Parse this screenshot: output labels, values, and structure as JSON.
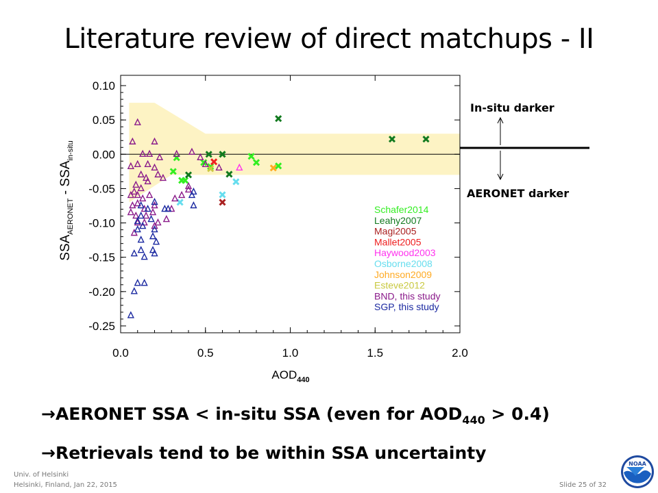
{
  "slide": {
    "title": "Literature review of direct matchups - II",
    "bullet1": {
      "arrow": "→",
      "prefix": "AERONET SSA < in-situ SSA (even for AOD",
      "sub": "440",
      "suffix": " > 0.4)"
    },
    "bullet2": {
      "arrow": "→",
      "text": "Retrievals tend to be within SSA uncertainty"
    },
    "footer_left_1": "Univ. of Helsinki",
    "footer_left_2": "Helsinki, Finland, Jan 22, 2015",
    "footer_right": "Slide 25 of 32",
    "logo": "noaa-logo",
    "colors": {
      "band": "#fdf3c4"
    }
  },
  "annotations": {
    "insitu_darker": "In-situ darker",
    "aeronet_darker": "AERONET darker"
  },
  "chart_data": {
    "type": "scatter",
    "xlabel_main": "AOD",
    "xlabel_sub": "440",
    "ylabel_main": "SSA",
    "ylabel_sub1": "AERONET",
    "ylabel_mid": " - SSA",
    "ylabel_sub2": "in-situ",
    "xlim": [
      0.0,
      2.0
    ],
    "ylim": [
      -0.26,
      0.115
    ],
    "xticks": [
      "0.0",
      "0.5",
      "1.0",
      "1.5",
      "2.0"
    ],
    "yticks": [
      "0.10",
      "0.05",
      "0.00",
      "-0.05",
      "-0.10",
      "-0.15",
      "-0.20",
      "-0.25"
    ],
    "legend_position": "bottom-right",
    "uncertainty_band": [
      [
        0.05,
        0.075
      ],
      [
        0.2,
        0.075
      ],
      [
        0.5,
        0.03
      ],
      [
        2.0,
        0.03
      ],
      [
        2.0,
        -0.03
      ],
      [
        0.3,
        -0.03
      ],
      [
        0.05,
        -0.07
      ]
    ],
    "series": [
      {
        "name": "Schafer2014",
        "color": "#33ee22",
        "marker": "x",
        "points": [
          [
            0.33,
            -0.005
          ],
          [
            0.31,
            -0.025
          ],
          [
            0.36,
            -0.038
          ],
          [
            0.38,
            -0.038
          ],
          [
            0.49,
            -0.012
          ],
          [
            0.53,
            -0.018
          ],
          [
            0.6,
            0.0
          ],
          [
            0.77,
            -0.003
          ],
          [
            0.8,
            -0.012
          ],
          [
            0.93,
            -0.017
          ]
        ]
      },
      {
        "name": "Leahy2007",
        "color": "#127a1f",
        "marker": "x",
        "points": [
          [
            0.4,
            -0.03
          ],
          [
            0.52,
            0.0
          ],
          [
            0.6,
            0.0
          ],
          [
            0.64,
            -0.029
          ],
          [
            0.93,
            0.052
          ],
          [
            1.6,
            0.022
          ],
          [
            1.8,
            0.022
          ]
        ]
      },
      {
        "name": "Magi2005",
        "color": "#aa2222",
        "marker": "x",
        "points": [
          [
            0.6,
            -0.07
          ]
        ]
      },
      {
        "name": "Mallet2005",
        "color": "#ee2020",
        "marker": "x",
        "points": [
          [
            0.55,
            -0.011
          ]
        ]
      },
      {
        "name": "Haywood2003",
        "color": "#ff33ee",
        "marker": "triangle",
        "points": [
          [
            0.7,
            -0.02
          ]
        ]
      },
      {
        "name": "Osborne2008",
        "color": "#66ddee",
        "marker": "x",
        "points": [
          [
            0.35,
            -0.07
          ],
          [
            0.6,
            -0.059
          ],
          [
            0.68,
            -0.04
          ]
        ]
      },
      {
        "name": "Johnson2009",
        "color": "#ffaa22",
        "marker": "x",
        "points": [
          [
            0.9,
            -0.02
          ]
        ]
      },
      {
        "name": "Esteve2012",
        "color": "#c9c940",
        "marker": "x",
        "points": [
          [
            0.53,
            -0.021
          ]
        ]
      },
      {
        "name": "BND, this study",
        "color": "#8a1a8a",
        "marker": "triangle",
        "points": [
          [
            0.1,
            0.046
          ],
          [
            0.07,
            0.018
          ],
          [
            0.2,
            0.018
          ],
          [
            0.13,
            0.0
          ],
          [
            0.17,
            0.0
          ],
          [
            0.23,
            -0.005
          ],
          [
            0.06,
            -0.018
          ],
          [
            0.1,
            -0.015
          ],
          [
            0.16,
            -0.015
          ],
          [
            0.2,
            -0.02
          ],
          [
            0.12,
            -0.03
          ],
          [
            0.15,
            -0.035
          ],
          [
            0.22,
            -0.03
          ],
          [
            0.09,
            -0.045
          ],
          [
            0.12,
            -0.05
          ],
          [
            0.16,
            -0.04
          ],
          [
            0.25,
            -0.035
          ],
          [
            0.06,
            -0.06
          ],
          [
            0.08,
            -0.055
          ],
          [
            0.1,
            -0.06
          ],
          [
            0.13,
            -0.065
          ],
          [
            0.17,
            -0.06
          ],
          [
            0.07,
            -0.075
          ],
          [
            0.1,
            -0.072
          ],
          [
            0.14,
            -0.08
          ],
          [
            0.2,
            -0.075
          ],
          [
            0.06,
            -0.085
          ],
          [
            0.09,
            -0.09
          ],
          [
            0.15,
            -0.09
          ],
          [
            0.19,
            -0.085
          ],
          [
            0.1,
            -0.1
          ],
          [
            0.14,
            -0.1
          ],
          [
            0.22,
            -0.1
          ],
          [
            0.2,
            -0.105
          ],
          [
            0.08,
            -0.115
          ],
          [
            0.27,
            -0.095
          ],
          [
            0.3,
            -0.08
          ],
          [
            0.32,
            -0.065
          ],
          [
            0.36,
            -0.06
          ],
          [
            0.4,
            -0.052
          ],
          [
            0.4,
            -0.047
          ],
          [
            0.33,
            0.0
          ],
          [
            0.42,
            0.003
          ],
          [
            0.5,
            -0.015
          ],
          [
            0.58,
            -0.02
          ],
          [
            0.47,
            -0.005
          ]
        ]
      },
      {
        "name": "SGP, this study",
        "color": "#1a28a0",
        "marker": "triangle",
        "points": [
          [
            0.06,
            -0.235
          ],
          [
            0.08,
            -0.2
          ],
          [
            0.1,
            -0.188
          ],
          [
            0.14,
            -0.188
          ],
          [
            0.08,
            -0.145
          ],
          [
            0.12,
            -0.14
          ],
          [
            0.14,
            -0.15
          ],
          [
            0.19,
            -0.14
          ],
          [
            0.2,
            -0.145
          ],
          [
            0.12,
            -0.125
          ],
          [
            0.19,
            -0.12
          ],
          [
            0.21,
            -0.128
          ],
          [
            0.1,
            -0.11
          ],
          [
            0.13,
            -0.105
          ],
          [
            0.2,
            -0.11
          ],
          [
            0.1,
            -0.098
          ],
          [
            0.12,
            -0.09
          ],
          [
            0.18,
            -0.095
          ],
          [
            0.16,
            -0.08
          ],
          [
            0.2,
            -0.07
          ],
          [
            0.12,
            -0.075
          ],
          [
            0.26,
            -0.08
          ],
          [
            0.28,
            -0.08
          ],
          [
            0.43,
            -0.055
          ],
          [
            0.42,
            -0.06
          ],
          [
            0.43,
            -0.075
          ]
        ]
      }
    ]
  }
}
